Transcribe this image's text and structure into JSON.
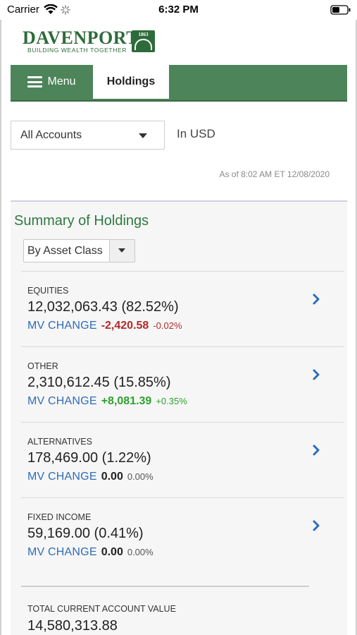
{
  "status_bar": {
    "carrier": "Carrier",
    "time": "6:32 PM"
  },
  "brand": {
    "name": "DAVENPORT",
    "tagline": "BUILDING WEALTH TOGETHER",
    "badge_year": "1863",
    "color": "#2e6b3a"
  },
  "nav": {
    "menu_label": "Menu",
    "active_tab": "Holdings",
    "bar_color": "#4d845a"
  },
  "filters": {
    "account_selected": "All Accounts",
    "currency_label": "In USD",
    "as_of": "As of  8:02 AM ET 12/08/2020"
  },
  "summary": {
    "title": "Summary of Holdings",
    "grouping_selected": "By Asset Class",
    "change_label": "MV CHANGE",
    "rows": [
      {
        "label": "EQUITIES",
        "value": "12,032,063.43 (82.52%)",
        "change": "-2,420.58",
        "change_pct": "-0.02%",
        "trend": "neg"
      },
      {
        "label": "OTHER",
        "value": "2,310,612.45 (15.85%)",
        "change": "+8,081.39",
        "change_pct": "+0.35%",
        "trend": "pos"
      },
      {
        "label": "ALTERNATIVES",
        "value": "178,469.00 (1.22%)",
        "change": "0.00",
        "change_pct": "0.00%",
        "trend": "neu"
      },
      {
        "label": "FIXED INCOME",
        "value": "59,169.00 (0.41%)",
        "change": "0.00",
        "change_pct": "0.00%",
        "trend": "neu"
      }
    ],
    "total_label": "TOTAL CURRENT ACCOUNT VALUE",
    "total_value": "14,580,313.88"
  },
  "colors": {
    "title_green": "#2f7a42",
    "link_blue": "#2f6cb8",
    "negative": "#b22a2a",
    "positive": "#2ea12e"
  },
  "icons": [
    "wifi-icon",
    "activity-spinner-icon",
    "battery-icon",
    "hamburger-icon",
    "caret-down-icon",
    "chevron-right-icon"
  ]
}
